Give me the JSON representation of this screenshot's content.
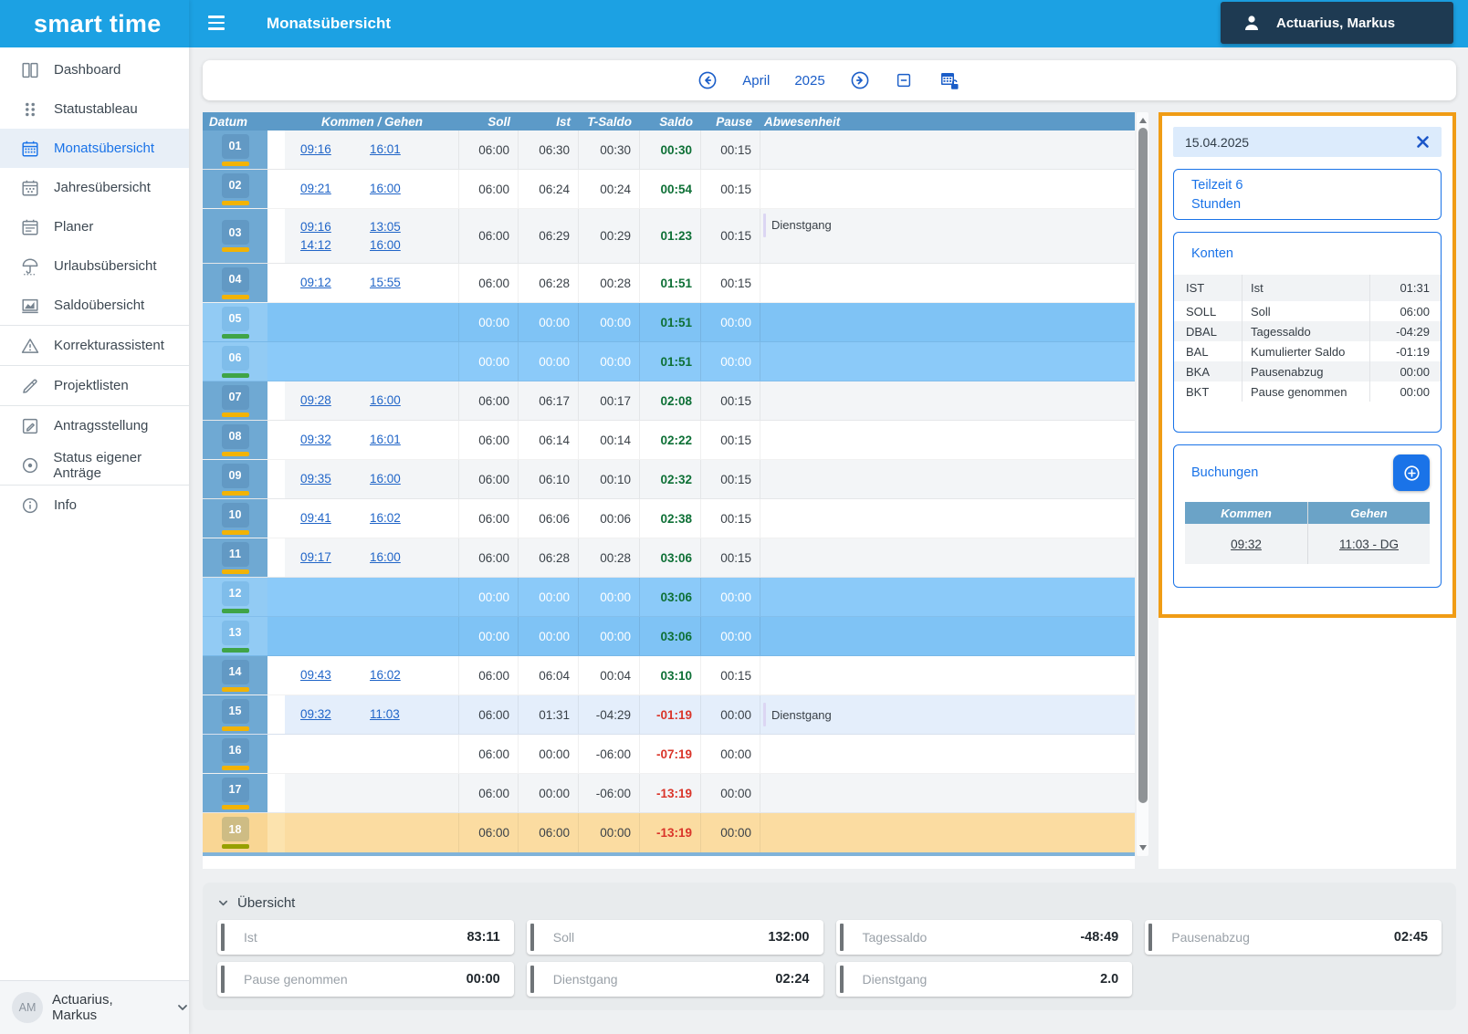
{
  "app": {
    "logo": "smart time",
    "page_title": "Monatsübersicht"
  },
  "topbar": {
    "user": "Actuarius, Markus"
  },
  "sidebar": {
    "items": [
      {
        "id": "dashboard",
        "label": "Dashboard",
        "icon": "dashboard-icon",
        "active": false,
        "divider_after": false
      },
      {
        "id": "statustableau",
        "label": "Statustableau",
        "icon": "statustableau-icon",
        "active": false,
        "divider_after": false
      },
      {
        "id": "monatsuebersicht",
        "label": "Monatsübersicht",
        "icon": "calendar-month-icon",
        "active": true,
        "divider_after": false
      },
      {
        "id": "jahresuebersicht",
        "label": "Jahresübersicht",
        "icon": "calendar-year-icon",
        "active": false,
        "divider_after": false
      },
      {
        "id": "planer",
        "label": "Planer",
        "icon": "calendar-planner-icon",
        "active": false,
        "divider_after": false
      },
      {
        "id": "urlaubsuebersicht",
        "label": "Urlaubsübersicht",
        "icon": "umbrella-icon",
        "active": false,
        "divider_after": false
      },
      {
        "id": "saldouebersicht",
        "label": "Saldoübersicht",
        "icon": "chart-icon",
        "active": false,
        "divider_after": true
      },
      {
        "id": "korrekturassistent",
        "label": "Korrekturassistent",
        "icon": "warning-icon",
        "active": false,
        "divider_after": true
      },
      {
        "id": "projektlisten",
        "label": "Projektlisten",
        "icon": "pen-icon",
        "active": false,
        "divider_after": true
      },
      {
        "id": "antragsstellung",
        "label": "Antragsstellung",
        "icon": "edit-icon",
        "active": false,
        "divider_after": false
      },
      {
        "id": "status-eigener-antraege",
        "label": "Status eigener Anträge",
        "icon": "status-icon",
        "active": false,
        "divider_after": true
      },
      {
        "id": "info",
        "label": "Info",
        "icon": "info-icon",
        "active": false,
        "divider_after": false
      }
    ],
    "footer_user": {
      "initials": "AM",
      "name": "Actuarius, Markus"
    }
  },
  "toolbar": {
    "month": "April",
    "year": "2025"
  },
  "table": {
    "headers": [
      "Datum",
      "Kommen / Gehen",
      "Soll",
      "Ist",
      "T-Saldo",
      "Saldo",
      "Pause",
      "Abwesenheit"
    ],
    "rows": [
      {
        "day": "01",
        "variant": "work",
        "bar": "yellow",
        "bookings": [
          [
            "09:16",
            "16:01"
          ]
        ],
        "soll": "06:00",
        "ist": "06:30",
        "tsaldo": "00:30",
        "saldo": "00:30",
        "saldo_neg": false,
        "pause": "00:15",
        "absence": ""
      },
      {
        "day": "02",
        "variant": "work",
        "bar": "yellow",
        "bookings": [
          [
            "09:21",
            "16:00"
          ]
        ],
        "soll": "06:00",
        "ist": "06:24",
        "tsaldo": "00:24",
        "saldo": "00:54",
        "saldo_neg": false,
        "pause": "00:15",
        "absence": ""
      },
      {
        "day": "03",
        "variant": "work",
        "bar": "yellow",
        "bookings": [
          [
            "09:16",
            "13:05"
          ],
          [
            "14:12",
            "16:00"
          ]
        ],
        "soll": "06:00",
        "ist": "06:29",
        "tsaldo": "00:29",
        "saldo": "01:23",
        "saldo_neg": false,
        "pause": "00:15",
        "absence": "Dienstgang"
      },
      {
        "day": "04",
        "variant": "work",
        "bar": "yellow",
        "bookings": [
          [
            "09:12",
            "15:55"
          ]
        ],
        "soll": "06:00",
        "ist": "06:28",
        "tsaldo": "00:28",
        "saldo": "01:51",
        "saldo_neg": false,
        "pause": "00:15",
        "absence": ""
      },
      {
        "day": "05",
        "variant": "weekend",
        "bar": "green",
        "bookings": [],
        "soll": "00:00",
        "ist": "00:00",
        "tsaldo": "00:00",
        "saldo": "01:51",
        "saldo_neg": false,
        "pause": "00:00",
        "absence": ""
      },
      {
        "day": "06",
        "variant": "weekend",
        "bar": "green",
        "bookings": [],
        "soll": "00:00",
        "ist": "00:00",
        "tsaldo": "00:00",
        "saldo": "01:51",
        "saldo_neg": false,
        "pause": "00:00",
        "absence": ""
      },
      {
        "day": "07",
        "variant": "work",
        "bar": "yellow",
        "bookings": [
          [
            "09:28",
            "16:00"
          ]
        ],
        "soll": "06:00",
        "ist": "06:17",
        "tsaldo": "00:17",
        "saldo": "02:08",
        "saldo_neg": false,
        "pause": "00:15",
        "absence": ""
      },
      {
        "day": "08",
        "variant": "work",
        "bar": "yellow",
        "bookings": [
          [
            "09:32",
            "16:01"
          ]
        ],
        "soll": "06:00",
        "ist": "06:14",
        "tsaldo": "00:14",
        "saldo": "02:22",
        "saldo_neg": false,
        "pause": "00:15",
        "absence": ""
      },
      {
        "day": "09",
        "variant": "work",
        "bar": "yellow",
        "bookings": [
          [
            "09:35",
            "16:00"
          ]
        ],
        "soll": "06:00",
        "ist": "06:10",
        "tsaldo": "00:10",
        "saldo": "02:32",
        "saldo_neg": false,
        "pause": "00:15",
        "absence": ""
      },
      {
        "day": "10",
        "variant": "work",
        "bar": "yellow",
        "bookings": [
          [
            "09:41",
            "16:02"
          ]
        ],
        "soll": "06:00",
        "ist": "06:06",
        "tsaldo": "00:06",
        "saldo": "02:38",
        "saldo_neg": false,
        "pause": "00:15",
        "absence": ""
      },
      {
        "day": "11",
        "variant": "work",
        "bar": "yellow",
        "bookings": [
          [
            "09:17",
            "16:00"
          ]
        ],
        "soll": "06:00",
        "ist": "06:28",
        "tsaldo": "00:28",
        "saldo": "03:06",
        "saldo_neg": false,
        "pause": "00:15",
        "absence": ""
      },
      {
        "day": "12",
        "variant": "weekend",
        "bar": "green",
        "bookings": [],
        "soll": "00:00",
        "ist": "00:00",
        "tsaldo": "00:00",
        "saldo": "03:06",
        "saldo_neg": false,
        "pause": "00:00",
        "absence": ""
      },
      {
        "day": "13",
        "variant": "weekend",
        "bar": "green",
        "bookings": [],
        "soll": "00:00",
        "ist": "00:00",
        "tsaldo": "00:00",
        "saldo": "03:06",
        "saldo_neg": false,
        "pause": "00:00",
        "absence": ""
      },
      {
        "day": "14",
        "variant": "work",
        "bar": "yellow",
        "bookings": [
          [
            "09:43",
            "16:02"
          ]
        ],
        "soll": "06:00",
        "ist": "06:04",
        "tsaldo": "00:04",
        "saldo": "03:10",
        "saldo_neg": false,
        "pause": "00:15",
        "absence": ""
      },
      {
        "day": "15",
        "variant": "selected",
        "bar": "yellow",
        "bookings": [
          [
            "09:32",
            "11:03"
          ]
        ],
        "soll": "06:00",
        "ist": "01:31",
        "tsaldo": "-04:29",
        "saldo": "-01:19",
        "saldo_neg": true,
        "pause": "00:00",
        "absence": "Dienstgang"
      },
      {
        "day": "16",
        "variant": "work",
        "bar": "yellow",
        "bookings": [],
        "soll": "06:00",
        "ist": "00:00",
        "tsaldo": "-06:00",
        "saldo": "-07:19",
        "saldo_neg": true,
        "pause": "00:00",
        "absence": ""
      },
      {
        "day": "17",
        "variant": "work",
        "bar": "yellow",
        "bookings": [],
        "soll": "06:00",
        "ist": "00:00",
        "tsaldo": "-06:00",
        "saldo": "-13:19",
        "saldo_neg": true,
        "pause": "00:00",
        "absence": ""
      },
      {
        "day": "18",
        "variant": "today",
        "bar": "olive",
        "bookings": [],
        "soll": "06:00",
        "ist": "06:00",
        "tsaldo": "00:00",
        "saldo": "-13:19",
        "saldo_neg": true,
        "pause": "00:00",
        "absence": ""
      }
    ]
  },
  "detail_panel": {
    "date": "15.04.2025",
    "schedule_line1": "Teilzeit 6",
    "schedule_line2": "Stunden",
    "konten": {
      "title": "Konten",
      "rows": [
        [
          "IST",
          "Ist",
          "01:31"
        ],
        [
          "SOLL",
          "Soll",
          "06:00"
        ],
        [
          "DBAL",
          "Tagessaldo",
          "-04:29"
        ],
        [
          "BAL",
          "Kumulierter Saldo",
          "-01:19"
        ],
        [
          "BKA",
          "Pausenabzug",
          "00:00"
        ],
        [
          "BKT",
          "Pause genommen",
          "00:00"
        ]
      ]
    },
    "buchungen": {
      "title": "Buchungen",
      "headers": [
        "Kommen",
        "Gehen"
      ],
      "rows": [
        [
          "09:32",
          "11:03 - DG"
        ]
      ]
    }
  },
  "summary": {
    "title": "Übersicht",
    "cards": [
      {
        "label": "Ist",
        "value": "83:11"
      },
      {
        "label": "Soll",
        "value": "132:00"
      },
      {
        "label": "Tagessaldo",
        "value": "-48:49"
      },
      {
        "label": "Pausenabzug",
        "value": "02:45"
      },
      {
        "label": "Pause genommen",
        "value": "00:00"
      },
      {
        "label": "Dienstgang",
        "value": "02:24"
      },
      {
        "label": "Dienstgang",
        "value": "2.0"
      }
    ]
  },
  "colors": {
    "brand": "#1ca1e3",
    "accent": "#1a73e8",
    "link": "#2065c8",
    "table_header": "#5c9ac8",
    "positive": "#0e7036",
    "negative": "#da352a",
    "panel_border": "#f09c15"
  }
}
